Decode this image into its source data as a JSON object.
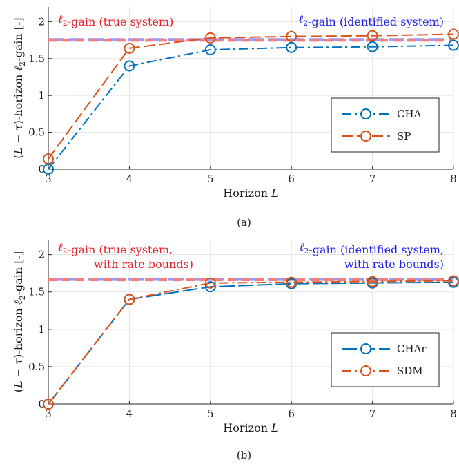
{
  "chart_data": [
    {
      "type": "line",
      "caption": "(a)",
      "xlabel": "Horizon L",
      "ylabel": "(L − τ)-horizon ℓ2-gain [-]",
      "x": [
        3,
        4,
        5,
        6,
        7,
        8
      ],
      "xlim": [
        3,
        8
      ],
      "ylim": [
        0,
        2.2
      ],
      "xticks": [
        "3",
        "4",
        "5",
        "6",
        "7",
        "8"
      ],
      "yticks": [
        "0",
        "0.5",
        "1",
        "1.5",
        "2"
      ],
      "grid": true,
      "series": [
        {
          "name": "CHA",
          "values": [
            0.0,
            1.4,
            1.62,
            1.65,
            1.66,
            1.68
          ],
          "color": "#0072BD",
          "style": "dashdot"
        },
        {
          "name": "SP",
          "values": [
            0.14,
            1.64,
            1.78,
            1.8,
            1.81,
            1.83
          ],
          "color": "#D95319",
          "style": "dashed"
        }
      ],
      "reference_lines": [
        {
          "label": "ℓ2-gain (true system)",
          "value": 1.75,
          "color": "#F08080"
        },
        {
          "label": "ℓ2-gain (identified system)",
          "value": 1.755,
          "color": "#9999FF"
        }
      ],
      "legend": "bottom-right"
    },
    {
      "type": "line",
      "caption": "(b)",
      "xlabel": "Horizon L",
      "ylabel": "(L − τ)-horizon ℓ2-gain [-]",
      "x": [
        3,
        4,
        5,
        6,
        7,
        8
      ],
      "xlim": [
        3,
        8
      ],
      "ylim": [
        0,
        2.2
      ],
      "xticks": [
        "3",
        "4",
        "5",
        "6",
        "7",
        "8"
      ],
      "yticks": [
        "0",
        "0.5",
        "1",
        "1.5",
        "2"
      ],
      "grid": true,
      "series": [
        {
          "name": "CHAr",
          "values": [
            0.0,
            1.4,
            1.57,
            1.61,
            1.62,
            1.63
          ],
          "color": "#0072BD",
          "style": "solid-dashed"
        },
        {
          "name": "SDM",
          "values": [
            0.0,
            1.4,
            1.62,
            1.63,
            1.64,
            1.65
          ],
          "color": "#D95319",
          "style": "dashdot"
        }
      ],
      "reference_lines": [
        {
          "label": "ℓ2-gain (true system, with rate bounds)",
          "value": 1.665,
          "color": "#F08080"
        },
        {
          "label": "ℓ2-gain (identified system, with rate bounds)",
          "value": 1.67,
          "color": "#9999FF"
        }
      ],
      "legend": "bottom-right"
    }
  ]
}
